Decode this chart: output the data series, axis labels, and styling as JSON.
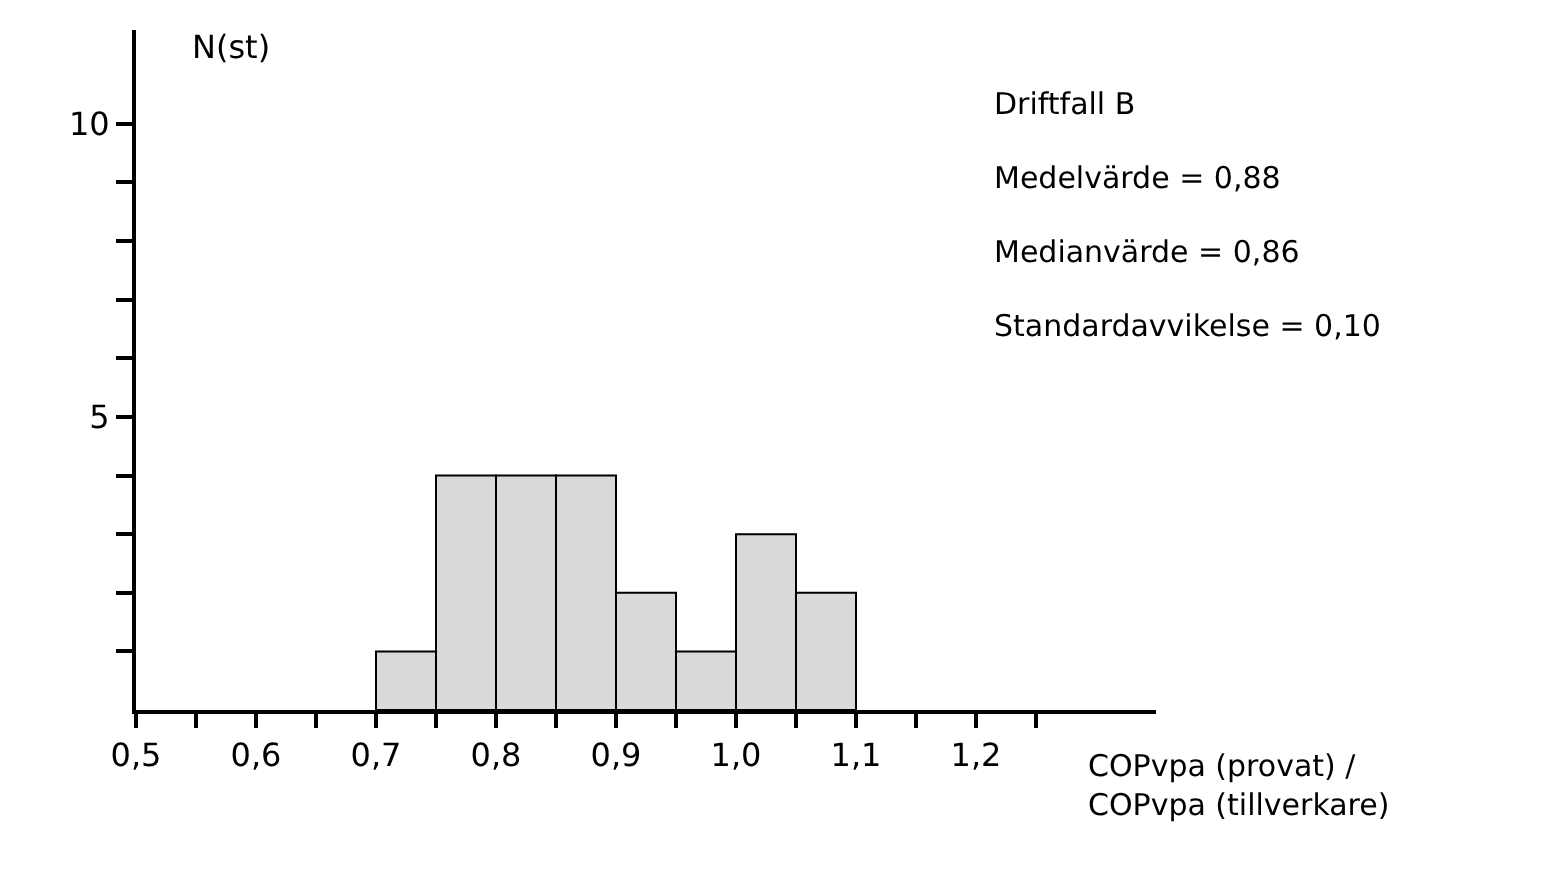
{
  "chart_data": {
    "type": "histogram",
    "ylabel": "N(st)",
    "xlabel": "COPvpa (provat) / COPvpa (tillverkare)",
    "bins": [
      0.7,
      0.75,
      0.8,
      0.85,
      0.9,
      0.95,
      1.0,
      1.05,
      1.1
    ],
    "values": [
      1,
      4,
      4,
      4,
      2,
      1,
      3,
      2
    ],
    "color": "#d9d9d9",
    "annotations": [
      "Driftfall B",
      "Medelvärde = 0,88",
      "Medianvärde = 0,86",
      "Standardavvikelse = 0,10"
    ],
    "xlim": [
      0.5,
      1.35
    ],
    "ylim": [
      0,
      11.6
    ],
    "xticks": [
      {
        "value": 0.5,
        "label": "0,5"
      },
      {
        "value": 0.55,
        "label": null
      },
      {
        "value": 0.6,
        "label": "0,6"
      },
      {
        "value": 0.65,
        "label": null
      },
      {
        "value": 0.7,
        "label": "0,7"
      },
      {
        "value": 0.75,
        "label": null
      },
      {
        "value": 0.8,
        "label": "0,8"
      },
      {
        "value": 0.85,
        "label": null
      },
      {
        "value": 0.9,
        "label": "0,9"
      },
      {
        "value": 0.95,
        "label": null
      },
      {
        "value": 1.0,
        "label": "1,0"
      },
      {
        "value": 1.05,
        "label": null
      },
      {
        "value": 1.1,
        "label": "1,1"
      },
      {
        "value": 1.15,
        "label": null
      },
      {
        "value": 1.2,
        "label": "1,2"
      },
      {
        "value": 1.25,
        "label": null
      }
    ],
    "yticks": [
      {
        "value": 1,
        "label": null
      },
      {
        "value": 2,
        "label": null
      },
      {
        "value": 3,
        "label": null
      },
      {
        "value": 4,
        "label": null
      },
      5,
      {
        "value": 6,
        "label": null
      },
      {
        "value": 7,
        "label": null
      },
      {
        "value": 8,
        "label": null
      },
      {
        "value": 9,
        "label": null
      },
      10
    ],
    "tick_labels": true
  }
}
